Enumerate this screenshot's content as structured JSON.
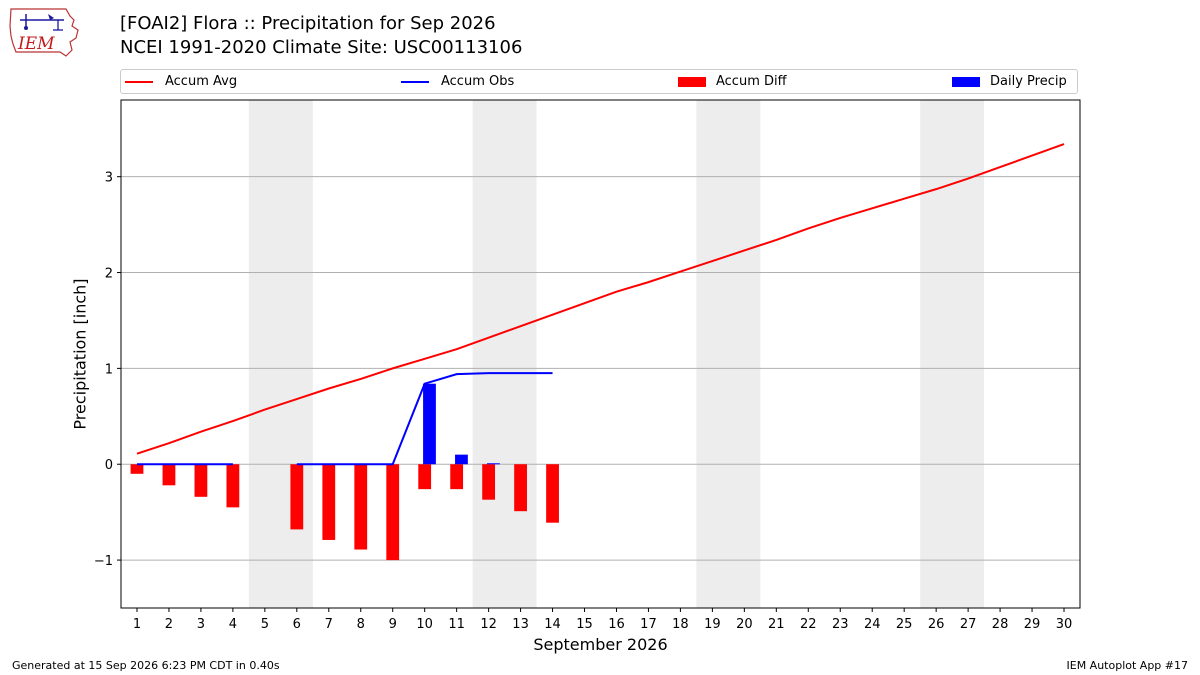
{
  "header": {
    "title_line1": "[FOAI2] Flora :: Precipitation for Sep 2026",
    "title_line2": "NCEI 1991-2020 Climate Site: USC00113106",
    "logo_text": "IEM"
  },
  "legend": {
    "items": [
      {
        "label": "Accum Avg",
        "kind": "line",
        "color": "#ff0000"
      },
      {
        "label": "Accum Obs",
        "kind": "line",
        "color": "#0000ff"
      },
      {
        "label": "Accum Diff",
        "kind": "bar",
        "color": "#ff0000"
      },
      {
        "label": "Daily Precip",
        "kind": "bar",
        "color": "#0000ff"
      }
    ]
  },
  "footer": {
    "left": "Generated at 15 Sep 2026 6:23 PM CDT in 0.40s",
    "right": "IEM Autoplot App #17"
  },
  "chart_data": {
    "type": "bar",
    "title": "[FOAI2] Flora :: Precipitation for Sep 2026",
    "subtitle": "NCEI 1991-2020 Climate Site: USC00113106",
    "xlabel": "September 2026",
    "ylabel": "Precipitation [inch]",
    "xlim": [
      0.5,
      30.5
    ],
    "ylim": [
      -1.5,
      3.8
    ],
    "yticks": [
      -1,
      0,
      1,
      2,
      3
    ],
    "ytick_labels": [
      "−1",
      "0",
      "1",
      "2",
      "3"
    ],
    "x": [
      1,
      2,
      3,
      4,
      5,
      6,
      7,
      8,
      9,
      10,
      11,
      12,
      13,
      14,
      15,
      16,
      17,
      18,
      19,
      20,
      21,
      22,
      23,
      24,
      25,
      26,
      27,
      28,
      29,
      30
    ],
    "grid": "horizontal",
    "legend_position": "top",
    "weekend_shading_days": [
      [
        5,
        6
      ],
      [
        12,
        13
      ],
      [
        19,
        20
      ],
      [
        26,
        27
      ]
    ],
    "weekend_color": "#ededed",
    "series": [
      {
        "name": "Accum Avg",
        "type": "line",
        "color": "#ff0000",
        "x": [
          1,
          2,
          3,
          4,
          5,
          6,
          7,
          8,
          9,
          10,
          11,
          12,
          13,
          14,
          15,
          16,
          17,
          18,
          19,
          20,
          21,
          22,
          23,
          24,
          25,
          26,
          27,
          28,
          29,
          30
        ],
        "values": [
          0.11,
          0.22,
          0.34,
          0.45,
          0.57,
          0.68,
          0.79,
          0.89,
          1.0,
          1.1,
          1.2,
          1.32,
          1.44,
          1.56,
          1.68,
          1.8,
          1.9,
          2.01,
          2.12,
          2.23,
          2.34,
          2.46,
          2.57,
          2.67,
          2.77,
          2.87,
          2.98,
          3.1,
          3.22,
          3.34
        ]
      },
      {
        "name": "Accum Obs",
        "type": "line",
        "color": "#0000ff",
        "x": [
          1,
          2,
          3,
          4,
          6,
          7,
          8,
          9,
          10,
          11,
          12,
          13,
          14
        ],
        "values": [
          0,
          0,
          0,
          0,
          0,
          0,
          0,
          0,
          0.84,
          0.94,
          0.95,
          0.95,
          0.95
        ],
        "segments": [
          [
            1,
            4
          ],
          [
            6,
            14
          ]
        ]
      },
      {
        "name": "Accum Diff",
        "type": "bar",
        "color": "#ff0000",
        "x": [
          1,
          2,
          3,
          4,
          6,
          7,
          8,
          9,
          10,
          11,
          12,
          13,
          14
        ],
        "values": [
          -0.1,
          -0.22,
          -0.34,
          -0.45,
          -0.68,
          -0.79,
          -0.89,
          -1.0,
          -0.26,
          -0.26,
          -0.37,
          -0.49,
          -0.61
        ]
      },
      {
        "name": "Daily Precip",
        "type": "bar",
        "color": "#0000ff",
        "x": [
          10,
          11,
          12
        ],
        "values": [
          0.84,
          0.1,
          0.01
        ]
      }
    ]
  }
}
